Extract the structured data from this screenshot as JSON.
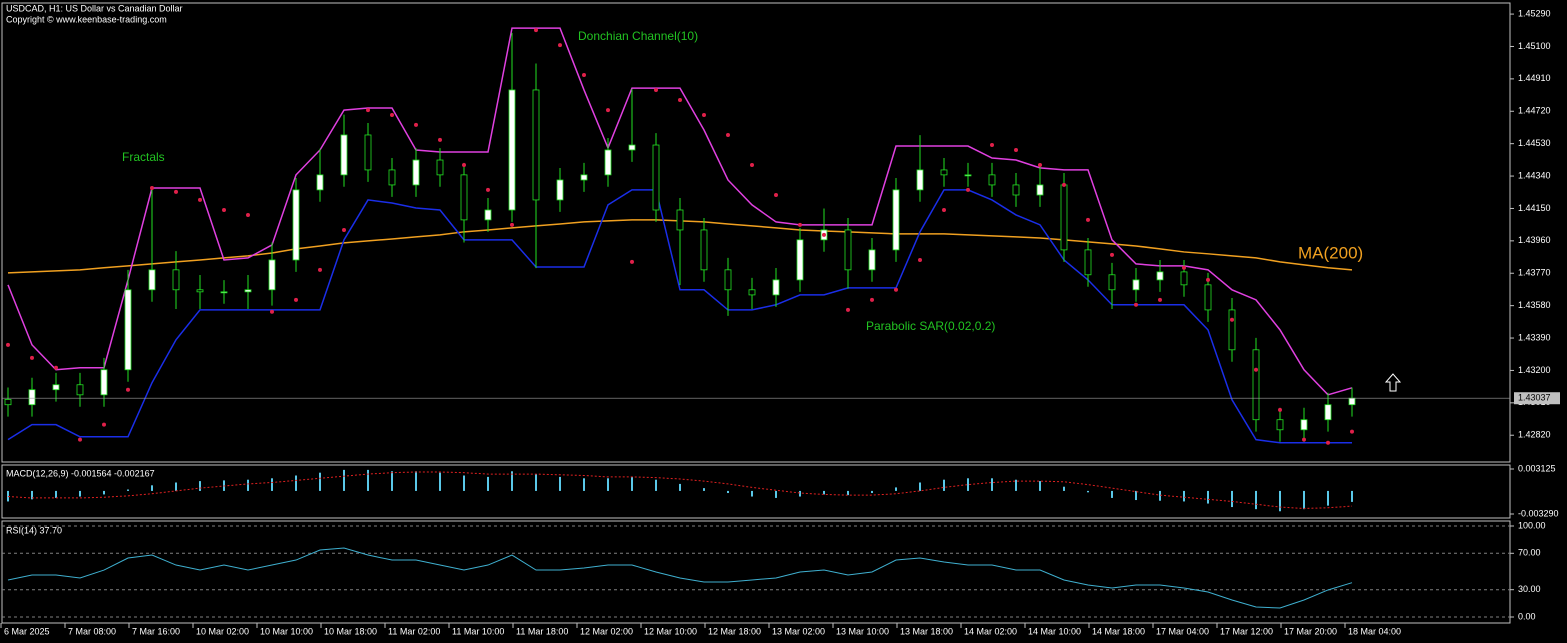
{
  "chart_data": [
    {
      "type": "candlestick",
      "title": "USDCAD, H1:  US Dollar vs Canadian Dollar",
      "subtitle": "Copyright © www.keenbase-trading.com",
      "annotations": {
        "donchian": "Donchian Channel(10)",
        "fractals": "Fractals",
        "sar": "Parabolic SAR(0.02,0.2)",
        "ma": "MA(200)"
      },
      "ylim": [
        1.42663,
        1.45355
      ],
      "yticks": [
        {
          "value": 1.4529,
          "label": "1.45290"
        },
        {
          "value": 1.451,
          "label": "1.45100"
        },
        {
          "value": 1.4491,
          "label": "1.44910"
        },
        {
          "value": 1.4472,
          "label": "1.44720"
        },
        {
          "value": 1.4453,
          "label": "1.44530"
        },
        {
          "value": 1.4434,
          "label": "1.44340"
        },
        {
          "value": 1.4415,
          "label": "1.44150"
        },
        {
          "value": 1.4396,
          "label": "1.43960"
        },
        {
          "value": 1.4377,
          "label": "1.43770"
        },
        {
          "value": 1.4358,
          "label": "1.43580"
        },
        {
          "value": 1.4339,
          "label": "1.43390"
        },
        {
          "value": 1.432,
          "label": "1.43200"
        },
        {
          "value": 1.4301,
          "label": "1.43010"
        },
        {
          "value": 1.4282,
          "label": "1.42820"
        }
      ],
      "last_price": 1.43037,
      "time_labels": [
        "6 Mar 2025",
        "7 Mar 08:00",
        "7 Mar 16:00",
        "10 Mar 02:00",
        "10 Mar 10:00",
        "10 Mar 18:00",
        "11 Mar 02:00",
        "11 Mar 10:00",
        "11 Mar 18:00",
        "12 Mar 02:00",
        "12 Mar 10:00",
        "12 Mar 18:00",
        "13 Mar 02:00",
        "13 Mar 10:00",
        "13 Mar 18:00",
        "14 Mar 02:00",
        "14 Mar 10:00",
        "14 Mar 18:00",
        "17 Mar 04:00",
        "17 Mar 12:00",
        "17 Mar 20:00",
        "18 Mar 04:00"
      ],
      "colors": {
        "wick": "#22e022",
        "bull": "#ffffff",
        "bear": "#000000",
        "upper": "#e040e0",
        "lower": "#1a2ee8",
        "ma": "#f0a020",
        "sar": "#e0204a"
      },
      "open": [
        1.4303,
        1.42999,
        1.43087,
        1.43116,
        1.43057,
        1.43204,
        1.43673,
        1.4379,
        1.43673,
        1.43661,
        1.43661,
        1.43673,
        1.43848,
        1.44259,
        1.44347,
        1.44581,
        1.44376,
        1.44288,
        1.44434,
        1.44347,
        1.44083,
        1.44141,
        1.44845,
        1.442,
        1.44317,
        1.44347,
        1.44493,
        1.44522,
        1.44141,
        1.44024,
        1.4379,
        1.43673,
        1.43643,
        1.43731,
        1.43966,
        1.44024,
        1.4379,
        1.43907,
        1.44259,
        1.44376,
        1.44347,
        1.44347,
        1.44288,
        1.44229,
        1.44288,
        1.43907,
        1.43761,
        1.43673,
        1.43731,
        1.43778,
        1.43702,
        1.43555,
        1.43321,
        1.42911,
        1.42852,
        1.42911,
        1.42999
      ],
      "high": [
        1.431,
        1.43157,
        1.43186,
        1.43186,
        1.43274,
        1.4379,
        1.4427,
        1.439,
        1.4376,
        1.4373,
        1.4376,
        1.4395,
        1.44329,
        1.445,
        1.447,
        1.44651,
        1.44446,
        1.44504,
        1.44504,
        1.44417,
        1.44211,
        1.4518,
        1.45,
        1.44387,
        1.44417,
        1.44563,
        1.4485,
        1.44592,
        1.44211,
        1.44094,
        1.4386,
        1.43743,
        1.43801,
        1.44036,
        1.4415,
        1.44094,
        1.43977,
        1.44329,
        1.4458,
        1.44446,
        1.44417,
        1.44417,
        1.44358,
        1.444,
        1.44358,
        1.43977,
        1.43831,
        1.43801,
        1.43848,
        1.43848,
        1.43772,
        1.43625,
        1.43391,
        1.42981,
        1.42981,
        1.43069,
        1.431
      ],
      "low": [
        1.42929,
        1.42929,
        1.43017,
        1.42987,
        1.42987,
        1.43134,
        1.43603,
        1.4356,
        1.4356,
        1.43591,
        1.4356,
        1.4358,
        1.43778,
        1.44189,
        1.44277,
        1.44306,
        1.44218,
        1.44218,
        1.44277,
        1.4395,
        1.44013,
        1.44071,
        1.438,
        1.4413,
        1.44247,
        1.44277,
        1.44423,
        1.44071,
        1.437,
        1.4372,
        1.4352,
        1.4356,
        1.43573,
        1.43661,
        1.43896,
        1.4368,
        1.4372,
        1.43837,
        1.44189,
        1.44277,
        1.44277,
        1.44218,
        1.44159,
        1.44159,
        1.43837,
        1.43691,
        1.4356,
        1.43603,
        1.43661,
        1.43632,
        1.43485,
        1.43251,
        1.42841,
        1.42782,
        1.42782,
        1.42841,
        1.42929
      ],
      "close": [
        1.42999,
        1.43087,
        1.43116,
        1.43057,
        1.43204,
        1.43673,
        1.4379,
        1.43673,
        1.43661,
        1.43661,
        1.43673,
        1.43848,
        1.44259,
        1.44347,
        1.44581,
        1.44376,
        1.44288,
        1.44434,
        1.44347,
        1.44083,
        1.44141,
        1.44845,
        1.442,
        1.44317,
        1.44347,
        1.44493,
        1.44522,
        1.44141,
        1.44024,
        1.4379,
        1.43673,
        1.43643,
        1.43731,
        1.43966,
        1.44024,
        1.4379,
        1.43907,
        1.44259,
        1.44376,
        1.44347,
        1.44347,
        1.44288,
        1.44229,
        1.44288,
        1.43907,
        1.43761,
        1.43673,
        1.43731,
        1.43778,
        1.43702,
        1.43555,
        1.43321,
        1.42911,
        1.42852,
        1.42911,
        1.42999,
        1.43037
      ],
      "donchian_upper": [
        1.43702,
        1.4335,
        1.43204,
        1.43216,
        1.43216,
        1.43731,
        1.4427,
        1.4427,
        1.4427,
        1.43848,
        1.4386,
        1.43936,
        1.44347,
        1.44493,
        1.44727,
        1.44739,
        1.44739,
        1.44493,
        1.44481,
        1.44481,
        1.44481,
        1.45208,
        1.45208,
        1.45208,
        1.44845,
        1.44505,
        1.44856,
        1.44856,
        1.44856,
        1.4461,
        1.44317,
        1.44171,
        1.44071,
        1.44054,
        1.44054,
        1.44054,
        1.44054,
        1.44516,
        1.44516,
        1.44516,
        1.44516,
        1.44446,
        1.44434,
        1.44388,
        1.44376,
        1.44376,
        1.43966,
        1.43825,
        1.43813,
        1.43813,
        1.4379,
        1.43673,
        1.43614,
        1.43438,
        1.43204,
        1.43057,
        1.43098
      ],
      "donchian_lower": [
        1.42794,
        1.42882,
        1.42882,
        1.42811,
        1.42811,
        1.42811,
        1.43128,
        1.4338,
        1.43555,
        1.43555,
        1.43555,
        1.43555,
        1.43555,
        1.43555,
        1.43966,
        1.442,
        1.44182,
        1.44153,
        1.44141,
        1.43966,
        1.43966,
        1.43966,
        1.43807,
        1.43807,
        1.43807,
        1.44171,
        1.44259,
        1.44259,
        1.43673,
        1.43673,
        1.43555,
        1.43555,
        1.43585,
        1.43643,
        1.43643,
        1.43684,
        1.43684,
        1.43684,
        1.44013,
        1.44259,
        1.44259,
        1.442,
        1.44112,
        1.44054,
        1.43848,
        1.43731,
        1.43585,
        1.43585,
        1.43585,
        1.43585,
        1.43438,
        1.43028,
        1.42794,
        1.42776,
        1.42776,
        1.42776,
        1.42776
      ],
      "ma200": [
        1.43772,
        1.43778,
        1.43784,
        1.4379,
        1.43802,
        1.43813,
        1.43825,
        1.43837,
        1.43848,
        1.4386,
        1.43872,
        1.43889,
        1.43913,
        1.4393,
        1.43948,
        1.4396,
        1.43971,
        1.43983,
        1.43995,
        1.44013,
        1.44024,
        1.44036,
        1.44048,
        1.44059,
        1.44071,
        1.44077,
        1.44083,
        1.44083,
        1.44077,
        1.44071,
        1.44059,
        1.44048,
        1.44036,
        1.44024,
        1.44018,
        1.44013,
        1.44007,
        1.44001,
        1.44001,
        1.44001,
        1.43995,
        1.43989,
        1.43983,
        1.43977,
        1.43966,
        1.43954,
        1.43942,
        1.4393,
        1.43913,
        1.43895,
        1.43884,
        1.43872,
        1.4386,
        1.43837,
        1.43819,
        1.43802,
        1.4379
      ],
      "sar": [
        1.4335,
        1.43274,
        1.43216,
        1.42794,
        1.42882,
        1.43087,
        1.4427,
        1.44247,
        1.442,
        1.44141,
        1.44112,
        1.43544,
        1.43614,
        1.4379,
        1.44024,
        1.44727,
        1.44698,
        1.4464,
        1.44552,
        1.44405,
        1.44259,
        1.44054,
        1.45196,
        1.45108,
        1.44933,
        1.44727,
        1.43837,
        1.44845,
        1.44786,
        1.44698,
        1.44581,
        1.44405,
        1.44229,
        1.44054,
        1.43995,
        1.43555,
        1.43614,
        1.43673,
        1.43848,
        1.44141,
        1.44259,
        1.44522,
        1.44493,
        1.44405,
        1.44288,
        1.44083,
        1.43878,
        1.43585,
        1.43614,
        1.43802,
        1.43731,
        1.43497,
        1.43204,
        1.42969,
        1.42794,
        1.42776,
        1.42841
      ]
    },
    {
      "type": "macd",
      "title": "MACD(12,26,9) -0.001564 -0.002167",
      "ylim": [
        -0.00329,
        0.003125
      ],
      "yticks": [
        {
          "value": 0.003125,
          "label": "0.003125"
        },
        {
          "value": -0.00329,
          "label": "-0.003290"
        }
      ],
      "series": [
        {
          "name": "MACD",
          "color": "#5ac8e8",
          "values": [
            -0.0015,
            -0.0012,
            -0.001,
            -0.0008,
            -0.0005,
            0.0002,
            0.0008,
            0.0012,
            0.0014,
            0.0015,
            0.0016,
            0.0018,
            0.0022,
            0.0026,
            0.003,
            0.003,
            0.0028,
            0.0028,
            0.0026,
            0.0022,
            0.002,
            0.0028,
            0.0024,
            0.002,
            0.0018,
            0.0018,
            0.002,
            0.0016,
            0.001,
            0.0004,
            -0.0003,
            -0.0008,
            -0.001,
            -0.0008,
            -0.0005,
            -0.0006,
            -0.0003,
            0.0005,
            0.0012,
            0.0016,
            0.0018,
            0.0018,
            0.0016,
            0.0014,
            0.0006,
            -0.0002,
            -0.001,
            -0.0013,
            -0.0014,
            -0.0015,
            -0.0018,
            -0.0023,
            -0.0026,
            -0.0029,
            -0.0026,
            -0.0021,
            -0.001564
          ]
        },
        {
          "name": "Signal",
          "color": "#e02020",
          "values": [
            -0.0008,
            -0.001,
            -0.001,
            -0.001,
            -0.0009,
            -0.0007,
            -0.0004,
            0,
            0.0004,
            0.0007,
            0.001,
            0.0012,
            0.0015,
            0.0018,
            0.0021,
            0.0024,
            0.0026,
            0.0027,
            0.0027,
            0.0026,
            0.0024,
            0.0024,
            0.0024,
            0.0023,
            0.0022,
            0.002,
            0.002,
            0.0019,
            0.0017,
            0.0014,
            0.001,
            0.0005,
            0.0001,
            -0.0003,
            -0.0005,
            -0.0006,
            -0.0006,
            -0.0004,
            0,
            0.0005,
            0.0009,
            0.0012,
            0.0014,
            0.0014,
            0.0013,
            0.0009,
            0.0004,
            -0.0001,
            -0.0006,
            -0.0009,
            -0.0012,
            -0.0015,
            -0.0019,
            -0.0023,
            -0.0025,
            -0.0024,
            -0.002167
          ]
        }
      ]
    },
    {
      "type": "line",
      "title": "RSI(14) 37.70",
      "ylim": [
        0,
        100
      ],
      "yticks": [
        {
          "value": 100,
          "label": "100.00"
        },
        {
          "value": 70,
          "label": "70.00"
        },
        {
          "value": 30,
          "label": "30.00"
        },
        {
          "value": 0,
          "label": "0.00"
        }
      ],
      "color": "#3fb0d0",
      "values": [
        40.7,
        46.2,
        46.2,
        42.9,
        51.6,
        64.8,
        68.1,
        57.1,
        51.6,
        57.1,
        51.6,
        57.1,
        62.6,
        73.6,
        75.8,
        68.1,
        62.6,
        62.6,
        57.1,
        51.6,
        57.1,
        68.1,
        51.6,
        51.6,
        53.8,
        57.1,
        57.1,
        49.5,
        42.9,
        38.5,
        38.5,
        40.7,
        42.9,
        49.5,
        51.6,
        46.2,
        49.5,
        62.6,
        64.8,
        60.4,
        57.1,
        57.1,
        51.6,
        51.6,
        40.7,
        35.2,
        31.9,
        35.2,
        35.2,
        31.9,
        27.5,
        18.7,
        11.0,
        9.9,
        18.7,
        29.7,
        37.7
      ]
    }
  ]
}
